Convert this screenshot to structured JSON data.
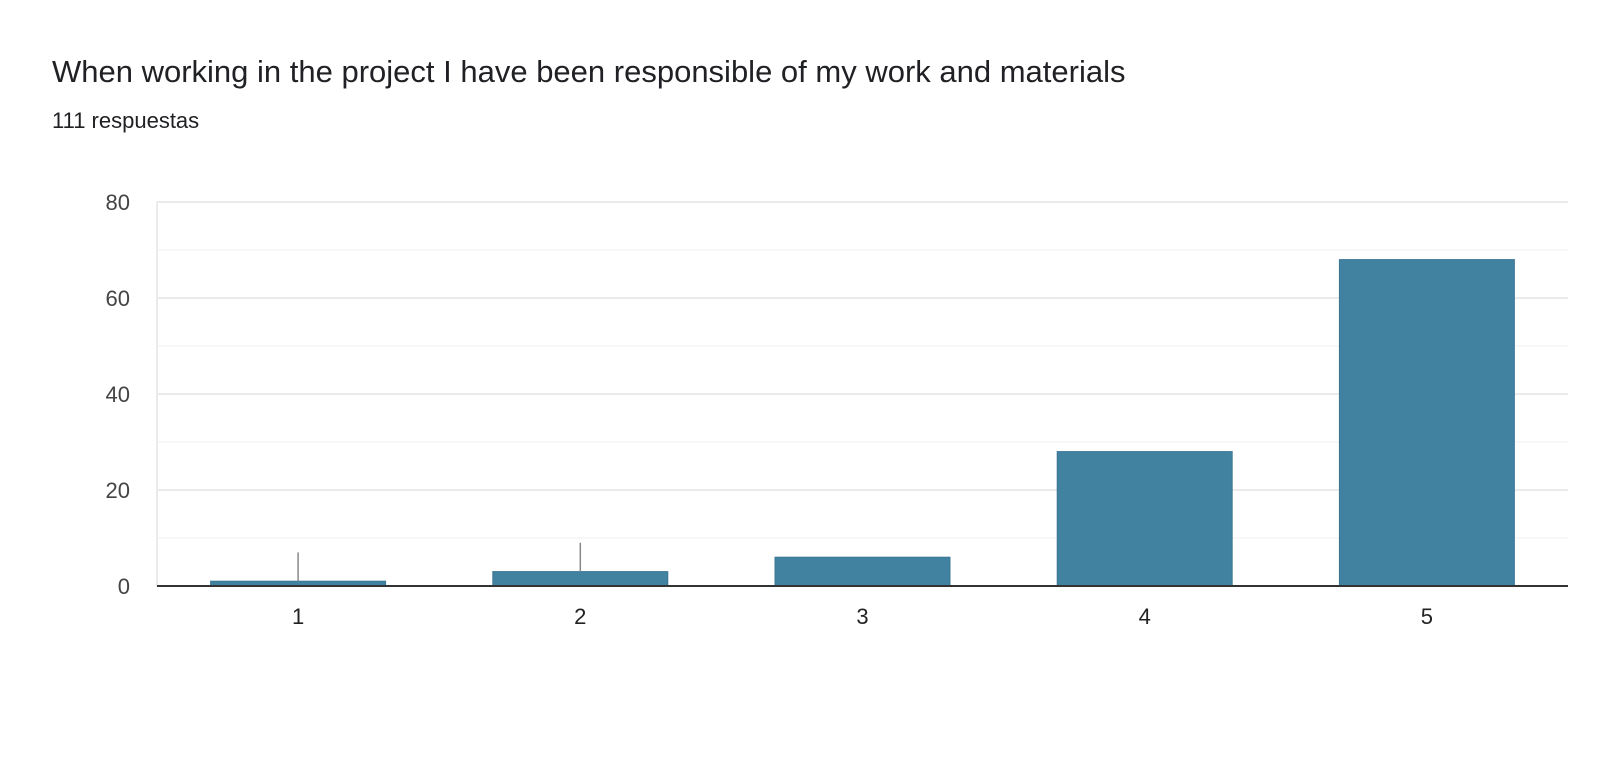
{
  "header": {
    "title": "When working in the project I have been responsible of my work and materials",
    "responses": "111 respuestas"
  },
  "colors": {
    "bar": "#4282a1",
    "grid": "#ebebeb",
    "minor_grid": "#f5f5f5",
    "axis": "#333333"
  },
  "chart_data": {
    "type": "bar",
    "title": "When working in the project I have been responsible of my work and materials",
    "subtitle": "111 respuestas",
    "categories": [
      "1",
      "2",
      "3",
      "4",
      "5"
    ],
    "values": [
      1,
      3,
      6,
      28,
      68
    ],
    "ylim": [
      0,
      80
    ],
    "yticks": [
      0,
      20,
      40,
      60,
      80
    ],
    "xlabel": "",
    "ylabel": "",
    "grid": true,
    "legend": "none"
  }
}
